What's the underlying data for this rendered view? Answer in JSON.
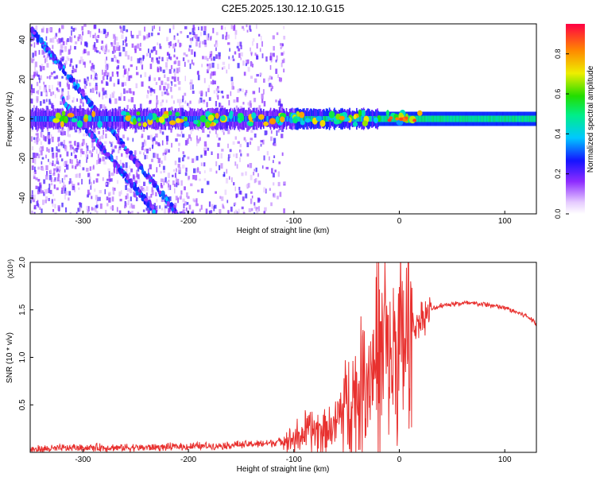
{
  "title": "C2E5.2025.130.12.10.G15",
  "chart_data": [
    {
      "type": "heatmap",
      "xlabel": "Height of straight line (km)",
      "ylabel": "Frequency (Hz)",
      "xlim": [
        -350,
        130
      ],
      "ylim": [
        -48,
        48
      ],
      "xticks": [
        -300,
        -200,
        -100,
        0,
        100
      ],
      "yticks": [
        -40,
        -20,
        0,
        20,
        40
      ],
      "colorbar": {
        "label": "Normalized spectral amplitude",
        "range": [
          0,
          0.95
        ],
        "ticks": [
          0.0,
          0.2,
          0.4,
          0.6,
          0.8
        ]
      },
      "features": [
        {
          "name": "main carrier line",
          "x_range": [
            -350,
            130
          ],
          "frequency": 0,
          "amplitude": [
            0.3,
            0.9
          ]
        },
        {
          "name": "descending trace 1",
          "from": [
            -350,
            46
          ],
          "to": [
            -210,
            -48
          ]
        },
        {
          "name": "descending trace 2",
          "from": [
            -320,
            10
          ],
          "to": [
            -230,
            -48
          ]
        },
        {
          "name": "noise region",
          "x_range": [
            -350,
            -110
          ],
          "amplitude": [
            0.05,
            0.25
          ]
        }
      ]
    },
    {
      "type": "line",
      "xlabel": "Height of straight line (km)",
      "ylabel": "SNR (10 * v/v)",
      "yscale_label": "(x10⁴)",
      "xlim": [
        -350,
        130
      ],
      "ylim": [
        0,
        2.0
      ],
      "xticks": [
        -300,
        -200,
        -100,
        0,
        100
      ],
      "yticks": [
        0.5,
        1.0,
        1.5,
        2.0
      ],
      "ytick_labels": [
        "0.5",
        "1.0",
        "1.5",
        "2.0"
      ],
      "color": "#e8312f",
      "x": [
        -350,
        -300,
        -250,
        -200,
        -150,
        -120,
        -100,
        -80,
        -70,
        -60,
        -50,
        -40,
        -30,
        -20,
        -15,
        -10,
        0,
        10,
        20,
        30,
        40,
        60,
        80,
        100,
        120,
        130
      ],
      "values": [
        0.03,
        0.05,
        0.05,
        0.06,
        0.08,
        0.1,
        0.15,
        0.25,
        0.25,
        0.3,
        0.55,
        0.6,
        0.8,
        1.0,
        1.05,
        0.95,
        1.05,
        1.25,
        1.4,
        1.5,
        1.55,
        1.57,
        1.56,
        1.52,
        1.44,
        1.36
      ]
    }
  ]
}
